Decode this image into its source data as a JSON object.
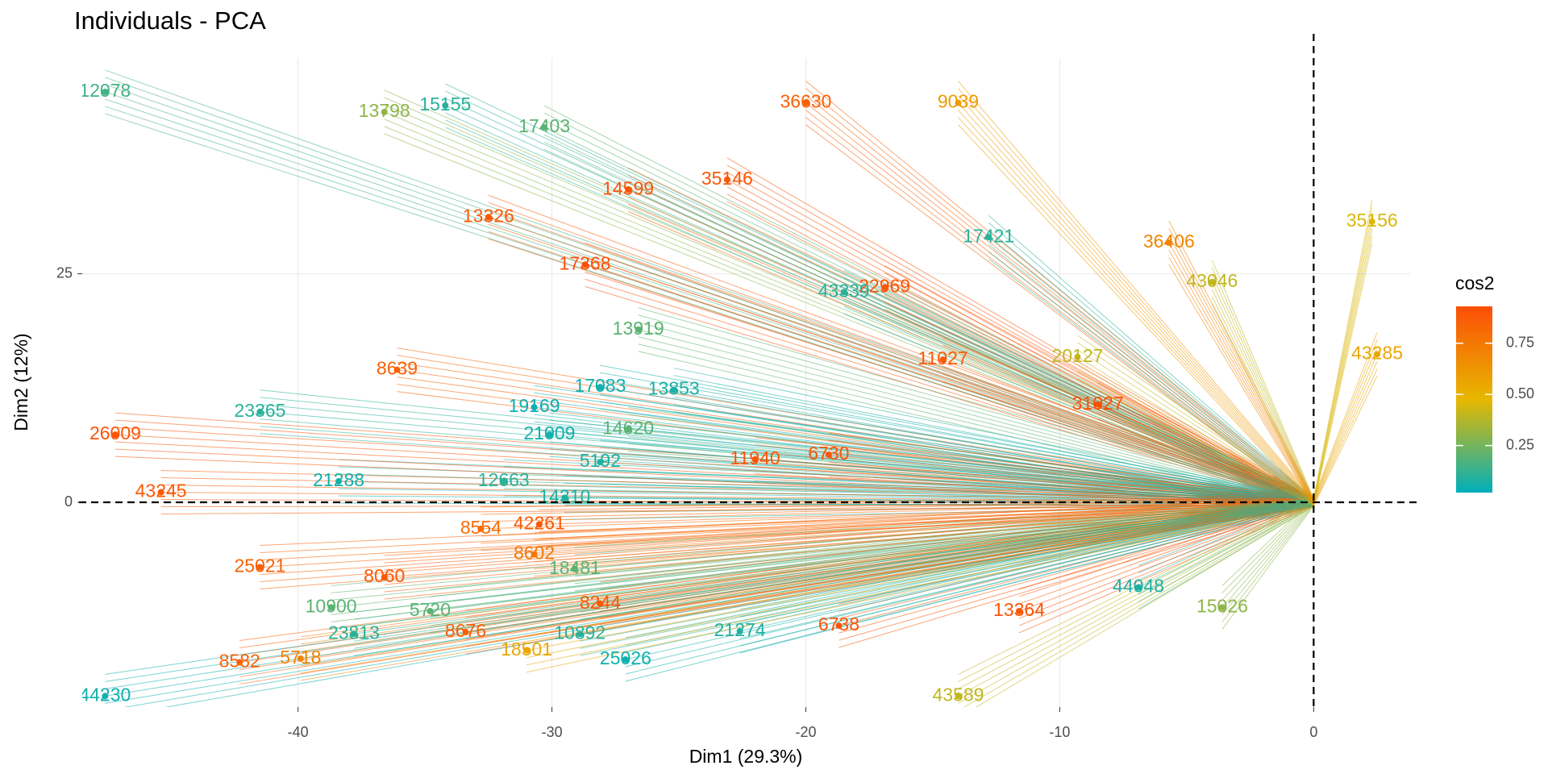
{
  "chart_data": {
    "type": "scatter",
    "title": "Individuals - PCA",
    "x_label": "Dim1 (29.3%)",
    "y_label": "Dim2 (12%)",
    "xlim": [
      -48.5,
      3.8
    ],
    "ylim": [
      -22.4,
      48.6
    ],
    "xticks": [
      -40,
      -30,
      -20,
      -10,
      0
    ],
    "yticks": [
      0,
      25
    ],
    "grid": true,
    "origin_lines": true,
    "color_legend": {
      "title": "cos2",
      "colors": [
        "#00AFBB",
        "#E7B800",
        "#FC4E07"
      ],
      "lim": [
        0.02,
        0.93
      ],
      "ticks": [
        {
          "value": 0.25,
          "label": "0.25"
        },
        {
          "value": 0.5,
          "label": "0.50"
        },
        {
          "value": 0.75,
          "label": "0.75"
        }
      ]
    },
    "points": [
      {
        "label": "36630",
        "x": -20.0,
        "y": 43.7,
        "cos2": 0.85
      },
      {
        "label": "35146",
        "x": -23.1,
        "y": 35.3,
        "cos2": 0.9
      },
      {
        "label": "14599",
        "x": -27.0,
        "y": 34.2,
        "cos2": 0.9
      },
      {
        "label": "13798",
        "x": -36.6,
        "y": 42.7,
        "cos2": 0.3
      },
      {
        "label": "15155",
        "x": -34.2,
        "y": 43.4,
        "cos2": 0.1
      },
      {
        "label": "17403",
        "x": -30.3,
        "y": 41.0,
        "cos2": 0.2
      },
      {
        "label": "35156",
        "x": 2.3,
        "y": 30.7,
        "cos2": 0.45
      },
      {
        "label": "43285",
        "x": 2.5,
        "y": 16.2,
        "cos2": 0.55
      },
      {
        "label": "17421",
        "x": -12.8,
        "y": 29.0,
        "cos2": 0.1
      },
      {
        "label": "17368",
        "x": -28.7,
        "y": 26.0,
        "cos2": 0.92
      },
      {
        "label": "13326",
        "x": -32.5,
        "y": 31.2,
        "cos2": 0.88
      },
      {
        "label": "22969",
        "x": -16.9,
        "y": 23.5,
        "cos2": 0.9
      },
      {
        "label": "43339",
        "x": -18.5,
        "y": 23.0,
        "cos2": 0.1
      },
      {
        "label": "11027",
        "x": -14.6,
        "y": 15.6,
        "cos2": 0.88
      },
      {
        "label": "8639",
        "x": -36.1,
        "y": 14.5,
        "cos2": 0.85
      },
      {
        "label": "13919",
        "x": -26.6,
        "y": 18.9,
        "cos2": 0.2
      },
      {
        "label": "17083",
        "x": -28.1,
        "y": 12.6,
        "cos2": 0.05
      },
      {
        "label": "13853",
        "x": -25.2,
        "y": 12.3,
        "cos2": 0.08
      },
      {
        "label": "19169",
        "x": -30.7,
        "y": 10.4,
        "cos2": 0.04
      },
      {
        "label": "21009",
        "x": -30.1,
        "y": 7.4,
        "cos2": 0.06
      },
      {
        "label": "14620",
        "x": -27.0,
        "y": 8.0,
        "cos2": 0.2
      },
      {
        "label": "31027",
        "x": -8.5,
        "y": 10.7,
        "cos2": 0.92
      },
      {
        "label": "11940",
        "x": -22.0,
        "y": 4.7,
        "cos2": 0.9
      },
      {
        "label": "6730",
        "x": -19.1,
        "y": 5.2,
        "cos2": 0.9
      },
      {
        "label": "5192",
        "x": -28.1,
        "y": 4.4,
        "cos2": 0.08
      },
      {
        "label": "21288",
        "x": -38.4,
        "y": 2.3,
        "cos2": 0.06
      },
      {
        "label": "12663",
        "x": -31.9,
        "y": 2.3,
        "cos2": 0.1
      },
      {
        "label": "14310",
        "x": -29.5,
        "y": 0.5,
        "cos2": 0.08
      },
      {
        "label": "43245",
        "x": -45.4,
        "y": 1.1,
        "cos2": 0.88
      },
      {
        "label": "26009",
        "x": -47.2,
        "y": 7.4,
        "cos2": 0.9
      },
      {
        "label": "23365",
        "x": -41.5,
        "y": 9.9,
        "cos2": 0.1
      },
      {
        "label": "42261",
        "x": -30.5,
        "y": -2.4,
        "cos2": 0.88
      },
      {
        "label": "8554",
        "x": -32.8,
        "y": -2.9,
        "cos2": 0.8
      },
      {
        "label": "8602",
        "x": -30.7,
        "y": -5.7,
        "cos2": 0.75
      },
      {
        "label": "18481",
        "x": -29.1,
        "y": -7.3,
        "cos2": 0.2
      },
      {
        "label": "8060",
        "x": -36.6,
        "y": -8.2,
        "cos2": 0.88
      },
      {
        "label": "25021",
        "x": -41.5,
        "y": -7.1,
        "cos2": 0.85
      },
      {
        "label": "8244",
        "x": -28.1,
        "y": -11.1,
        "cos2": 0.88
      },
      {
        "label": "44048",
        "x": -6.9,
        "y": -9.3,
        "cos2": 0.08
      },
      {
        "label": "15026",
        "x": -3.6,
        "y": -11.5,
        "cos2": 0.3
      },
      {
        "label": "6738",
        "x": -18.7,
        "y": -13.5,
        "cos2": 0.9
      },
      {
        "label": "21274",
        "x": -22.6,
        "y": -14.1,
        "cos2": 0.08
      },
      {
        "label": "10892",
        "x": -28.9,
        "y": -14.4,
        "cos2": 0.1
      },
      {
        "label": "25026",
        "x": -27.1,
        "y": -17.2,
        "cos2": 0.05
      },
      {
        "label": "18501",
        "x": -31.0,
        "y": -16.2,
        "cos2": 0.55
      },
      {
        "label": "13364",
        "x": -11.6,
        "y": -11.9,
        "cos2": 0.9
      },
      {
        "label": "23813",
        "x": -37.8,
        "y": -14.4,
        "cos2": 0.1
      },
      {
        "label": "8582",
        "x": -42.3,
        "y": -17.5,
        "cos2": 0.85
      },
      {
        "label": "5718",
        "x": -39.9,
        "y": -17.1,
        "cos2": 0.7
      },
      {
        "label": "8676",
        "x": -33.4,
        "y": -14.2,
        "cos2": 0.85
      },
      {
        "label": "10900",
        "x": -38.7,
        "y": -11.5,
        "cos2": 0.2
      },
      {
        "label": "5720",
        "x": -34.8,
        "y": -11.9,
        "cos2": 0.2
      },
      {
        "label": "43589",
        "x": -14.0,
        "y": -21.2,
        "cos2": 0.4
      },
      {
        "label": "44230",
        "x": -47.6,
        "y": -21.2,
        "cos2": 0.05
      },
      {
        "label": "12078",
        "x": -47.6,
        "y": 44.9,
        "cos2": 0.15
      },
      {
        "label": "20127",
        "x": -9.3,
        "y": 15.9,
        "cos2": 0.4
      },
      {
        "label": "43046",
        "x": -4.0,
        "y": 24.1,
        "cos2": 0.4
      },
      {
        "label": "36406",
        "x": -5.7,
        "y": 28.4,
        "cos2": 0.7
      },
      {
        "label": "9039",
        "x": -14.0,
        "y": 43.7,
        "cos2": 0.6
      }
    ]
  }
}
